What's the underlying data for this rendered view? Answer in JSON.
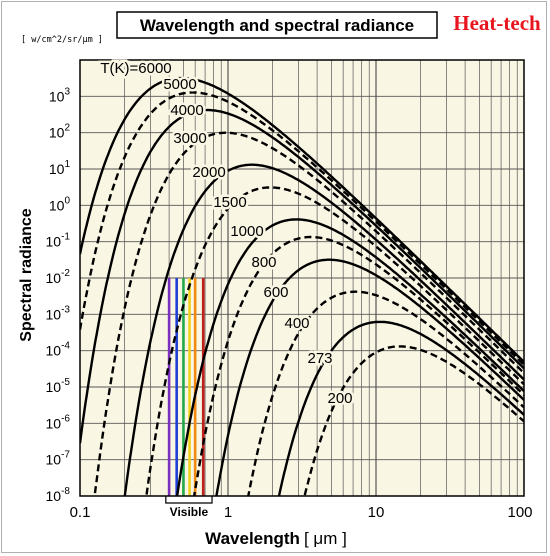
{
  "chart_data": {
    "type": "line",
    "title": "Wavelength and spectral radiance",
    "brand": "Heat-tech",
    "xlabel": "Wavelength",
    "xunit": "[ μm ]",
    "ylabel": "Spectral radiance",
    "yunit": "[ w/cm^2/sr/μm ]",
    "xscale": "log",
    "yscale": "log",
    "xlim": [
      0.1,
      100
    ],
    "ylim": [
      1e-08,
      10000
    ],
    "grid": true,
    "x_tick_labels": [
      "0.1",
      "1",
      "10",
      "100"
    ],
    "y_tick_labels": [
      {
        "base": "10",
        "exp": "-8"
      },
      {
        "base": "10",
        "exp": "-7"
      },
      {
        "base": "10",
        "exp": "-6"
      },
      {
        "base": "10",
        "exp": "-5"
      },
      {
        "base": "10",
        "exp": "-4"
      },
      {
        "base": "10",
        "exp": "-3"
      },
      {
        "base": "10",
        "exp": "-2"
      },
      {
        "base": "10",
        "exp": "-1"
      },
      {
        "base": "10",
        "exp": "0"
      },
      {
        "base": "10",
        "exp": "1"
      },
      {
        "base": "10",
        "exp": "2"
      },
      {
        "base": "10",
        "exp": "3"
      }
    ],
    "series": [
      {
        "name": "T(K)=6000",
        "temperature": 6000,
        "style": "solid"
      },
      {
        "name": "5000",
        "temperature": 5000,
        "style": "dashed"
      },
      {
        "name": "4000",
        "temperature": 4000,
        "style": "solid"
      },
      {
        "name": "3000",
        "temperature": 3000,
        "style": "dashed"
      },
      {
        "name": "2000",
        "temperature": 2000,
        "style": "solid"
      },
      {
        "name": "1500",
        "temperature": 1500,
        "style": "dashed"
      },
      {
        "name": "1000",
        "temperature": 1000,
        "style": "solid"
      },
      {
        "name": "800",
        "temperature": 800,
        "style": "dashed"
      },
      {
        "name": "600",
        "temperature": 600,
        "style": "solid"
      },
      {
        "name": "400",
        "temperature": 400,
        "style": "dashed"
      },
      {
        "name": "273",
        "temperature": 273,
        "style": "solid"
      },
      {
        "name": "200",
        "temperature": 200,
        "style": "dashed"
      }
    ],
    "visible_band": {
      "label": "Visible",
      "range_um": [
        0.38,
        0.78
      ],
      "lines": [
        {
          "wavelength": 0.4,
          "color": "#7b2fbf"
        },
        {
          "wavelength": 0.45,
          "color": "#1f3fd6"
        },
        {
          "wavelength": 0.5,
          "color": "#22a84a"
        },
        {
          "wavelength": 0.55,
          "color": "#f0d020"
        },
        {
          "wavelength": 0.6,
          "color": "#f08a10"
        },
        {
          "wavelength": 0.68,
          "color": "#c0201a"
        }
      ],
      "line_top_value": 0.01
    },
    "colors": {
      "plot_background": "#faf6e4",
      "brand": "#e8141e",
      "curves": "#000000"
    }
  }
}
